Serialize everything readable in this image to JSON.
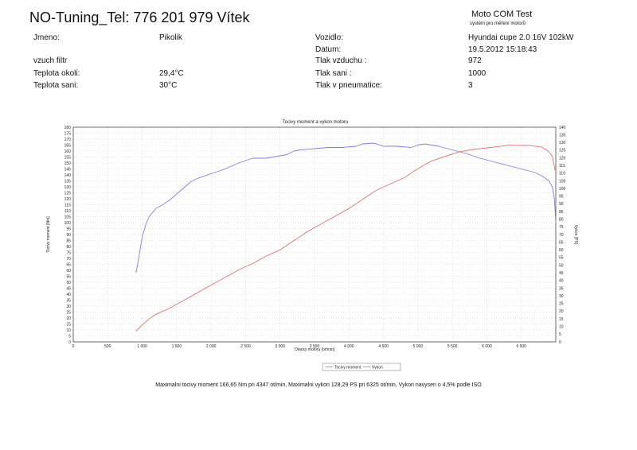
{
  "header": {
    "title": "NO-Tuning_Tel: 776 201 979 Vítek",
    "brand": "Moto COM Test",
    "brand_sub": "systém pro měření motorů"
  },
  "info": {
    "left": [
      {
        "label": "Jmeno:",
        "value": "Pikolik"
      },
      {
        "label": "vzuch filtr",
        "value": ""
      },
      {
        "label": "Teplota okoli:",
        "value": "29,4°C"
      },
      {
        "label": "Teplota sani:",
        "value": "30°C"
      }
    ],
    "right": [
      {
        "label": "Vozidlo:",
        "value": "Hyundai cupe 2.0 16V 102kW"
      },
      {
        "label": "Datum:",
        "value": "19.5.2012 15:18:43"
      },
      {
        "label": "Tlak vzduchu :",
        "value": "972"
      },
      {
        "label": "Tlak sani :",
        "value": "1000"
      },
      {
        "label": "Tlak v pneumatice:",
        "value": "3"
      }
    ]
  },
  "summary": "Maximalni tocivy moment 166,65 Nm pri 4347 ot/min,  Maximalni vykon 128,29 PS pri 6325 ot/min,  Vykon navysen o 4,5% podle ISO",
  "chart_data": {
    "type": "line",
    "title": "Tocivy moment a vykon motoru",
    "xlabel": "Otacky motoru [ot/min]",
    "ylabel": "Tocivy moment [Nm]",
    "y2label": "Vykon [PS]",
    "xlim": [
      0,
      7000
    ],
    "ylim": [
      0,
      180
    ],
    "y2lim": [
      0,
      140
    ],
    "x_ticks": [
      0,
      500,
      1000,
      1500,
      2000,
      2500,
      3000,
      3500,
      4000,
      4500,
      5000,
      5500,
      6000,
      6500
    ],
    "x_tick_labels": [
      "0",
      "500",
      "1 000",
      "1 500",
      "2 000",
      "2 500",
      "3 000",
      "3 500",
      "4 000",
      "4 500",
      "5 000",
      "5 500",
      "6 000",
      "6 500"
    ],
    "y_ticks": [
      0,
      5,
      10,
      15,
      20,
      25,
      30,
      35,
      40,
      45,
      50,
      55,
      60,
      65,
      70,
      75,
      80,
      85,
      90,
      95,
      100,
      105,
      110,
      115,
      120,
      125,
      130,
      135,
      140,
      145,
      150,
      155,
      160,
      165,
      170,
      175,
      180
    ],
    "y2_ticks": [
      0,
      5,
      10,
      15,
      20,
      25,
      30,
      35,
      40,
      45,
      50,
      55,
      60,
      65,
      70,
      75,
      80,
      85,
      90,
      95,
      100,
      105,
      110,
      115,
      120,
      125,
      130,
      135,
      140
    ],
    "grid": true,
    "legend_position": "bottom-center",
    "series": [
      {
        "name": "Tocivy moment",
        "axis": "left",
        "color": "#7f7fe0",
        "x": [
          910,
          950,
          1000,
          1050,
          1100,
          1200,
          1300,
          1400,
          1500,
          1600,
          1700,
          1800,
          2000,
          2200,
          2400,
          2600,
          2800,
          3000,
          3100,
          3200,
          3300,
          3500,
          3700,
          3900,
          4100,
          4200,
          4347,
          4400,
          4500,
          4700,
          4900,
          5000,
          5100,
          5200,
          5300,
          5500,
          5700,
          5900,
          6100,
          6300,
          6500,
          6700,
          6800,
          6900,
          6950,
          6980,
          7000
        ],
        "y": [
          58,
          70,
          88,
          98,
          105,
          112,
          115,
          119,
          124,
          129,
          134,
          137,
          141,
          145,
          150,
          154,
          154,
          156,
          157,
          160,
          161,
          162,
          163,
          163,
          164,
          166,
          166.65,
          166,
          164,
          164,
          163,
          165,
          166,
          165,
          164,
          161,
          158,
          154,
          151,
          148,
          145,
          142,
          139,
          135,
          130,
          120,
          100
        ]
      },
      {
        "name": "Vykon",
        "axis": "right",
        "color": "#e07070",
        "x": [
          910,
          1000,
          1100,
          1200,
          1400,
          1600,
          1800,
          2000,
          2200,
          2400,
          2600,
          2800,
          3000,
          3200,
          3400,
          3600,
          3800,
          4000,
          4200,
          4400,
          4600,
          4800,
          5000,
          5200,
          5400,
          5600,
          5800,
          6000,
          6200,
          6325,
          6400,
          6600,
          6800,
          6900,
          6950,
          6990
        ],
        "y": [
          7,
          11,
          15,
          18,
          22,
          27,
          32,
          37,
          42,
          47,
          51,
          56,
          60,
          66,
          72,
          77,
          82,
          87,
          93,
          99,
          103,
          107,
          113,
          118,
          121,
          124,
          125.5,
          126.5,
          127.5,
          128.29,
          128,
          128.2,
          127,
          124,
          121,
          112
        ]
      }
    ]
  }
}
